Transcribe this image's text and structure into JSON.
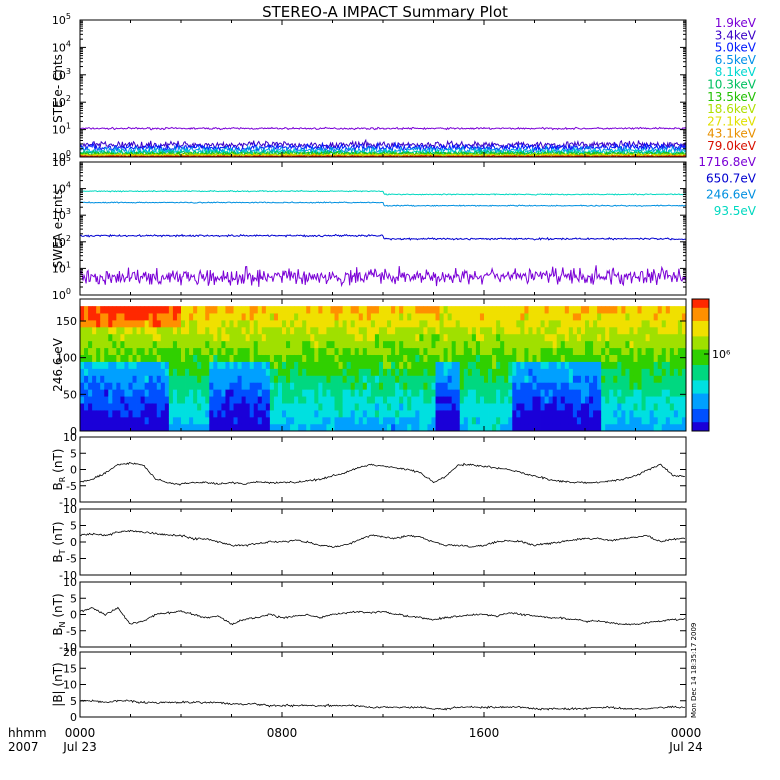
{
  "title": "STEREO-A IMPACT Summary Plot",
  "stamp": "Mon Dec 14 18:35:17 2009",
  "colorbar_label": "10⁶",
  "chart_data": [
    {
      "type": "line",
      "panel": "ste",
      "ylabel": "STE e- Cnts",
      "yscale": "log",
      "ylim": [
        1,
        100000
      ],
      "yticks": [
        1,
        10,
        100,
        1000,
        10000,
        100000
      ],
      "series": [
        {
          "name": "1.9keV",
          "color": "#7a00d6",
          "level": 11,
          "noise": 0.05
        },
        {
          "name": "3.4keV",
          "color": "#3a00c8",
          "level": 2.8,
          "noise": 0.18
        },
        {
          "name": "5.0keV",
          "color": "#0019ff",
          "level": 2.2,
          "noise": 0.18
        },
        {
          "name": "6.5keV",
          "color": "#0090e8",
          "level": 1.8,
          "noise": 0.18
        },
        {
          "name": "8.1keV",
          "color": "#00d8d0",
          "level": 1.5,
          "noise": 0.15
        },
        {
          "name": "10.3keV",
          "color": "#00c060",
          "level": 1.4,
          "noise": 0.12
        },
        {
          "name": "13.5keV",
          "color": "#20c000",
          "level": 1.3,
          "noise": 0.1
        },
        {
          "name": "18.6keV",
          "color": "#b0e000",
          "level": 1.2,
          "noise": 0.08
        },
        {
          "name": "27.1keV",
          "color": "#e0e000",
          "level": 1.15,
          "noise": 0.06
        },
        {
          "name": "43.1keV",
          "color": "#e89000",
          "level": 1.1,
          "noise": 0.05
        },
        {
          "name": "79.0keV",
          "color": "#d81000",
          "level": 1.05,
          "noise": 0.04
        }
      ]
    },
    {
      "type": "line",
      "panel": "swea",
      "ylabel": "SWEA e- cnts",
      "yscale": "log",
      "ylim": [
        1,
        100000
      ],
      "yticks": [
        1,
        10,
        100,
        1000,
        10000,
        100000
      ],
      "series": [
        {
          "name": "1716.8eV",
          "color": "#7a00d6",
          "level": 5,
          "noise": 0.45
        },
        {
          "name": "650.7eV",
          "color": "#0000d0",
          "level": 170,
          "noise": 0.05
        },
        {
          "name": "246.6eV",
          "color": "#0090e0",
          "level": 3000,
          "noise": 0.03
        },
        {
          "name": "93.5eV",
          "color": "#00d8c0",
          "level": 8000,
          "noise": 0.03
        }
      ]
    },
    {
      "type": "heatmap",
      "panel": "pad",
      "ylabel": "246.6 eV",
      "ylim": [
        0,
        180
      ],
      "yticks": [
        0,
        50,
        100,
        150
      ],
      "colorbar_ticks": [
        "10⁶"
      ]
    },
    {
      "type": "line",
      "panel": "br",
      "ylabel": "B_R (nT)",
      "ylim": [
        -10,
        10
      ],
      "yticks": [
        -10,
        -5,
        0,
        5,
        10
      ],
      "series": [
        {
          "color": "#000000",
          "x": [
            0,
            0.5,
            1,
            1.5,
            2,
            2.5,
            3,
            3.5,
            4,
            4.5,
            5,
            5.5,
            6,
            6.5,
            7,
            7.5,
            8,
            8.5,
            9,
            9.5,
            10,
            10.5,
            11,
            11.5,
            12,
            12.5,
            13,
            13.5,
            14,
            14.5,
            15,
            15.5,
            16,
            16.5,
            17,
            17.5,
            18,
            18.5,
            19,
            19.5,
            20,
            20.5,
            21,
            21.5,
            22,
            22.5,
            23,
            23.5,
            24
          ],
          "values": [
            -4,
            -3,
            -1,
            1.5,
            2,
            1.5,
            -3,
            -4,
            -4.5,
            -4,
            -4,
            -4.5,
            -4,
            -4.5,
            -4,
            -4,
            -4,
            -4,
            -3.5,
            -3,
            -2,
            -1,
            0.5,
            1.5,
            1,
            0.5,
            0,
            -1,
            -4,
            -2,
            1.5,
            1.5,
            1,
            0.5,
            0,
            -1,
            -2,
            -3,
            -3.5,
            -4,
            -4,
            -4,
            -3.5,
            -3,
            -2,
            0,
            1.5,
            -2,
            -2
          ]
        }
      ]
    },
    {
      "type": "line",
      "panel": "bt",
      "ylabel": "B_T (nT)",
      "ylim": [
        -10,
        10
      ],
      "yticks": [
        -10,
        -5,
        0,
        5,
        10
      ],
      "series": [
        {
          "color": "#000000",
          "x": [
            0,
            0.5,
            1,
            1.5,
            2,
            2.5,
            3,
            3.5,
            4,
            4.5,
            5,
            5.5,
            6,
            6.5,
            7,
            7.5,
            8,
            8.5,
            9,
            9.5,
            10,
            10.5,
            11,
            11.5,
            12,
            12.5,
            13,
            13.5,
            14,
            14.5,
            15,
            15.5,
            16,
            16.5,
            17,
            17.5,
            18,
            18.5,
            19,
            19.5,
            20,
            20.5,
            21,
            21.5,
            22,
            22.5,
            23,
            23.5,
            24
          ],
          "values": [
            2,
            2.5,
            2,
            3,
            3.5,
            3,
            2.5,
            2,
            2,
            1,
            1,
            0,
            -1,
            -1,
            -0.5,
            0,
            0,
            0.5,
            0,
            -1,
            -1.5,
            -1,
            0.5,
            2,
            1.5,
            1,
            2,
            1.5,
            0,
            -1,
            -1,
            -1.5,
            -1,
            0,
            0.5,
            0,
            -1,
            -0.5,
            0,
            0.5,
            1,
            1,
            0.5,
            1,
            1.5,
            2,
            0,
            1,
            1
          ]
        }
      ]
    },
    {
      "type": "line",
      "panel": "bn",
      "ylabel": "B_N (nT)",
      "ylim": [
        -10,
        10
      ],
      "yticks": [
        -10,
        -5,
        0,
        5,
        10
      ],
      "series": [
        {
          "color": "#000000",
          "x": [
            0,
            0.5,
            1,
            1.5,
            2,
            2.5,
            3,
            3.5,
            4,
            4.5,
            5,
            5.5,
            6,
            6.5,
            7,
            7.5,
            8,
            8.5,
            9,
            9.5,
            10,
            10.5,
            11,
            11.5,
            12,
            12.5,
            13,
            13.5,
            14,
            14.5,
            15,
            15.5,
            16,
            16.5,
            17,
            17.5,
            18,
            18.5,
            19,
            19.5,
            20,
            20.5,
            21,
            21.5,
            22,
            22.5,
            23,
            23.5,
            24
          ],
          "values": [
            1,
            2,
            0,
            2,
            -3,
            -2,
            0,
            0.5,
            1,
            0,
            -1,
            -0.5,
            -3,
            -1.5,
            -1,
            0,
            -1,
            -0.5,
            0,
            -1,
            0,
            0.5,
            1,
            0.5,
            1,
            0,
            -0.5,
            -1,
            -1.5,
            -1,
            -0.5,
            0,
            0,
            -0.5,
            0.5,
            0,
            -0.5,
            -1,
            -1,
            -1.5,
            -2,
            -2,
            -2.5,
            -3,
            -3,
            -2.5,
            -2,
            -1.5,
            -1.5
          ]
        }
      ]
    },
    {
      "type": "line",
      "panel": "bmag",
      "ylabel": "|B| (nT)",
      "ylim": [
        0,
        20
      ],
      "yticks": [
        0,
        5,
        10,
        15,
        20
      ],
      "series": [
        {
          "color": "#000000",
          "x": [
            0,
            0.5,
            1,
            1.5,
            2,
            2.5,
            3,
            3.5,
            4,
            4.5,
            5,
            5.5,
            6,
            6.5,
            7,
            7.5,
            8,
            8.5,
            9,
            9.5,
            10,
            10.5,
            11,
            11.5,
            12,
            12.5,
            13,
            13.5,
            14,
            14.5,
            15,
            15.5,
            16,
            16.5,
            17,
            17.5,
            18,
            18.5,
            19,
            19.5,
            20,
            20.5,
            21,
            21.5,
            22,
            22.5,
            23,
            23.5,
            24
          ],
          "values": [
            5,
            5,
            4.5,
            5,
            5,
            4.5,
            4.5,
            4.5,
            4.5,
            4.5,
            4.5,
            4.5,
            4,
            4,
            4,
            3.5,
            3.5,
            3.5,
            3.5,
            3.5,
            3.5,
            3.5,
            3.5,
            3,
            3,
            3,
            3,
            3,
            2.5,
            2.5,
            3,
            3,
            3,
            3,
            3,
            3,
            2.5,
            2.5,
            2.5,
            2.5,
            2.5,
            3,
            3,
            2.5,
            2.5,
            2.5,
            3,
            3,
            3
          ]
        }
      ]
    }
  ],
  "xaxis": {
    "corner": [
      "hhmm",
      "2007"
    ],
    "ticks": [
      {
        "hour": 0,
        "label": "0000",
        "date": "Jul 23"
      },
      {
        "hour": 8,
        "label": "0800",
        "date": ""
      },
      {
        "hour": 16,
        "label": "1600",
        "date": ""
      },
      {
        "hour": 24,
        "label": "0000",
        "date": "Jul 24"
      }
    ],
    "range": [
      0,
      24
    ]
  }
}
